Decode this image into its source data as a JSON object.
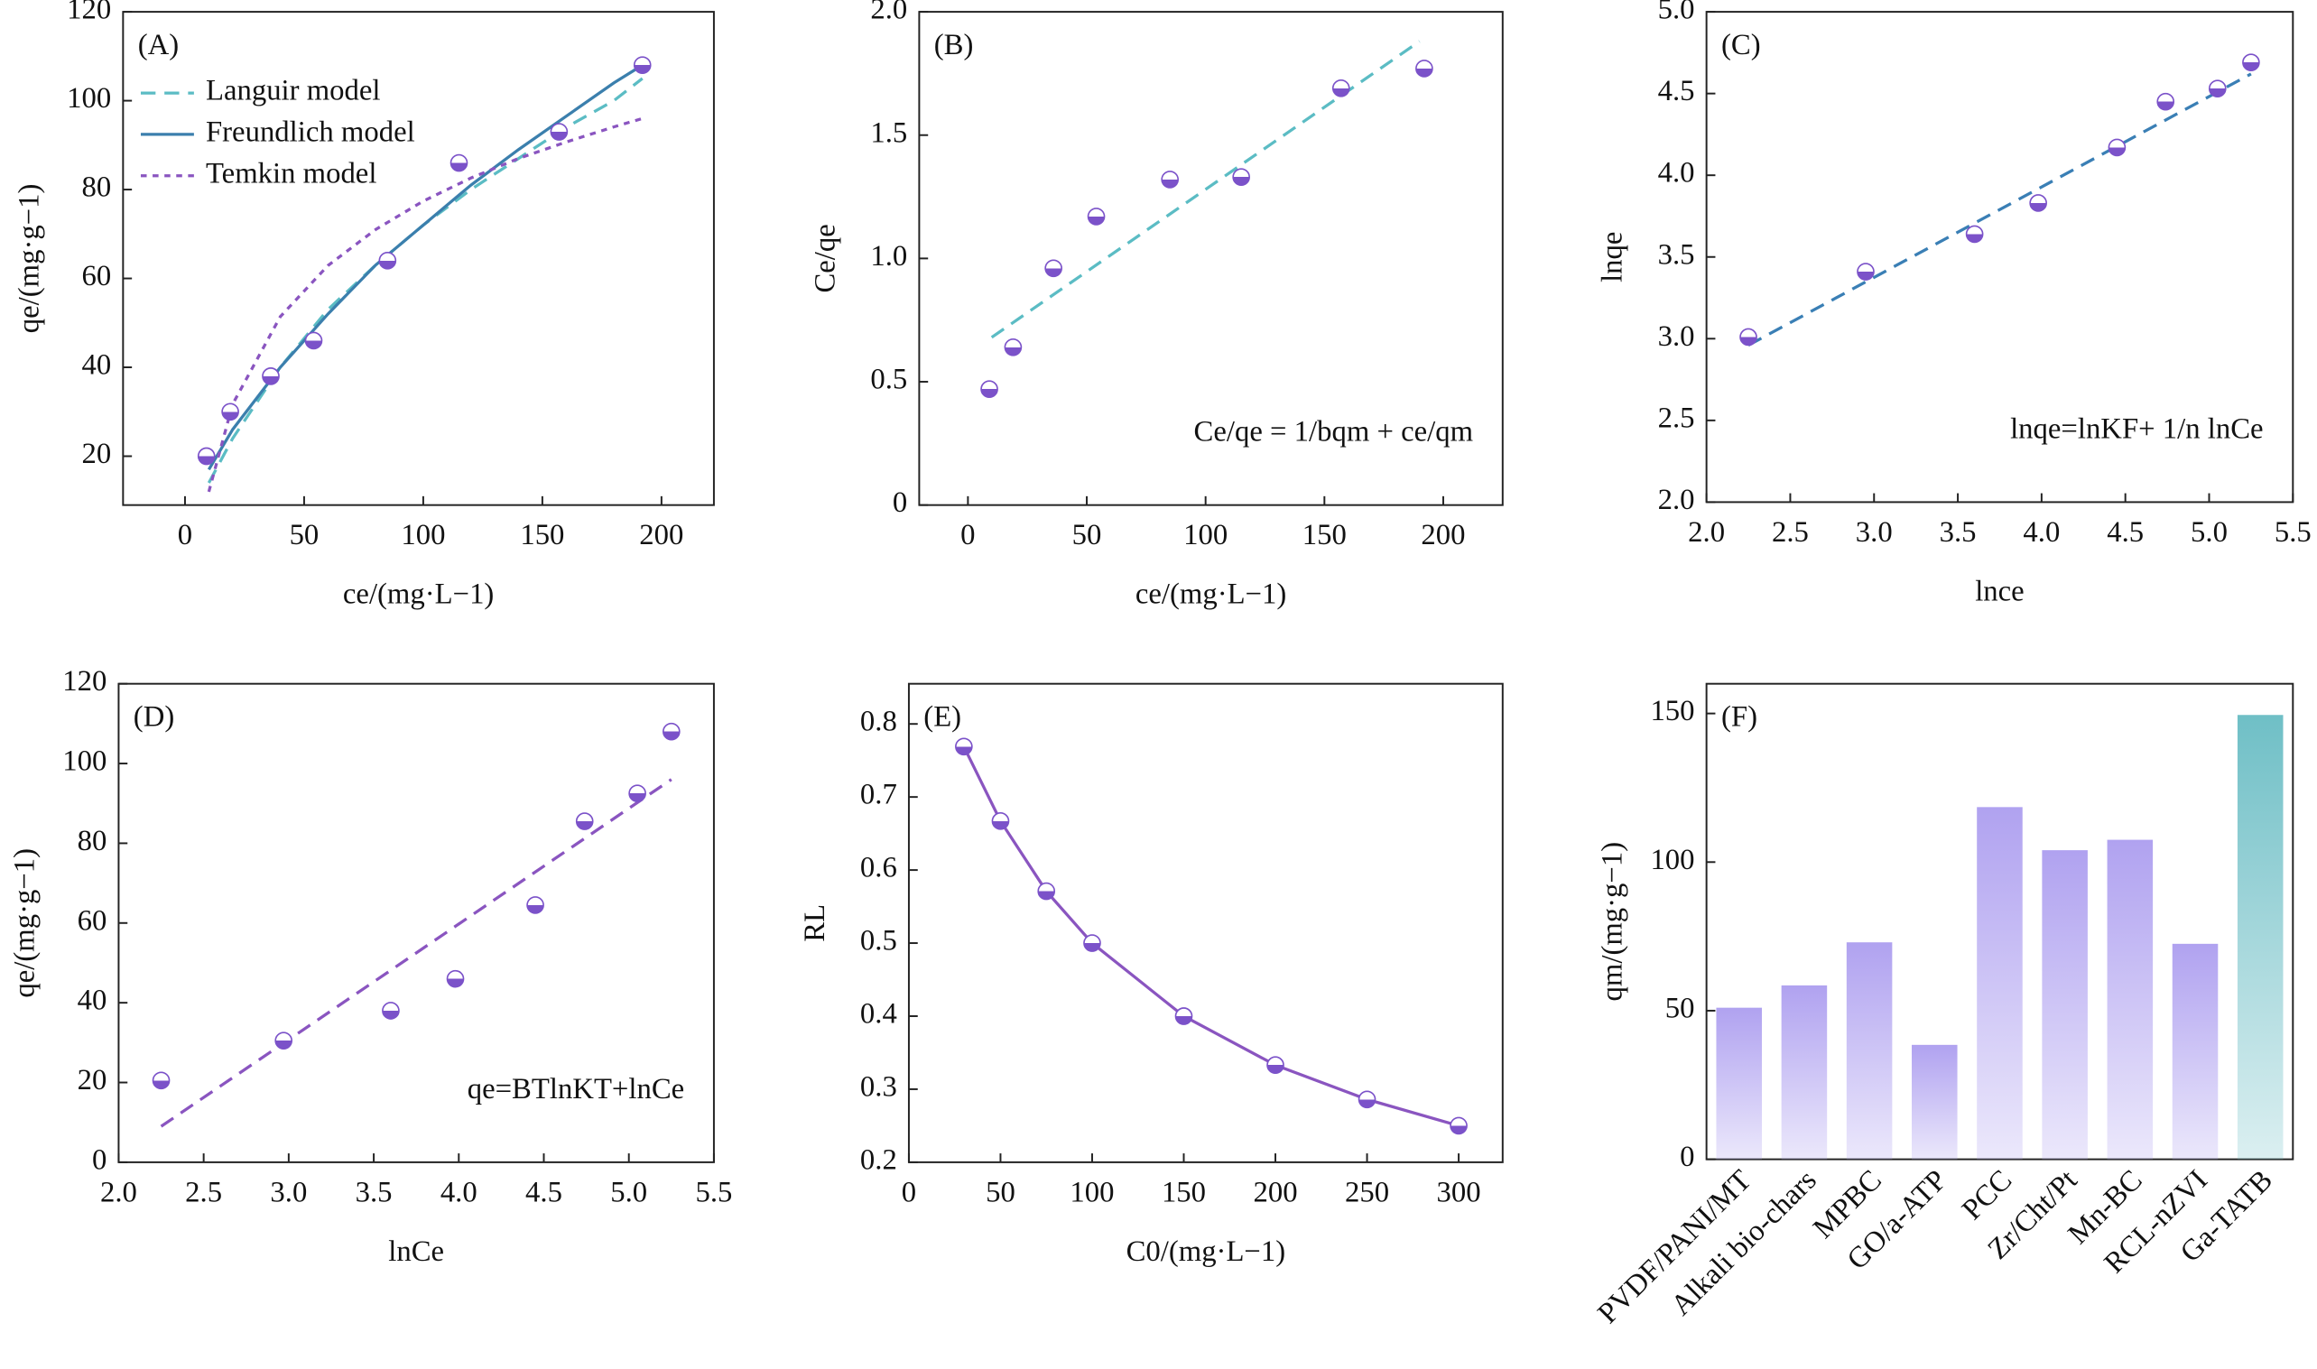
{
  "chart_data": [
    {
      "type": "scatter",
      "label": "(A)",
      "xlabel": "ce/(mg·L−1)",
      "ylabel": "qe/(mg·g−1)",
      "xlim": [
        -26,
        222
      ],
      "ylim": [
        9,
        120
      ],
      "xticks": [
        0,
        50,
        100,
        150,
        200
      ],
      "yticks": [
        20,
        40,
        60,
        80,
        100,
        120
      ],
      "x": [
        9,
        19,
        36,
        54,
        85,
        115,
        157,
        192
      ],
      "values": [
        20,
        30,
        38,
        46,
        64,
        86,
        93,
        108
      ],
      "marker_color": "#7b52c9",
      "series": [
        {
          "name": "Languir model",
          "color": "#5bbcc4",
          "dash": "10,6",
          "x": [
            10,
            20,
            40,
            60,
            80,
            100,
            120,
            140,
            160,
            180,
            192
          ],
          "values": [
            14,
            24,
            40,
            53,
            63,
            72,
            80,
            87,
            94,
            100,
            105
          ]
        },
        {
          "name": "Freundlich model",
          "color": "#3b7fad",
          "dash": "none",
          "x": [
            10,
            20,
            40,
            60,
            80,
            100,
            120,
            140,
            160,
            180,
            192
          ],
          "values": [
            17,
            26,
            40,
            52,
            63,
            72,
            81,
            89,
            96.5,
            104,
            108
          ]
        },
        {
          "name": "Temkin model",
          "color": "#8a55c0",
          "dash": "4,4",
          "x": [
            10,
            20,
            40,
            60,
            80,
            100,
            120,
            140,
            160,
            180,
            192
          ],
          "values": [
            12,
            31.7,
            51.4,
            62.9,
            71,
            77.4,
            82.6,
            87,
            90.7,
            94.1,
            96
          ]
        }
      ]
    },
    {
      "type": "scatter",
      "label": "(B)",
      "xlabel": "ce/(mg·L−1)",
      "ylabel": "Ce/qe",
      "annotation": "Ce/qe = 1/bqm + ce/qm",
      "xlim": [
        -20.5,
        225
      ],
      "ylim": [
        0,
        2
      ],
      "xticks": [
        0,
        50,
        100,
        150,
        200
      ],
      "yticks": [
        0,
        0.5,
        {
          "value": 1,
          "label": "1.0"
        },
        1.5,
        {
          "value": 2,
          "label": "2.0"
        }
      ],
      "x": [
        9,
        19,
        36,
        54,
        85,
        115,
        157,
        192
      ],
      "values": [
        0.47,
        0.64,
        0.96,
        1.17,
        1.32,
        1.33,
        1.69,
        1.77
      ],
      "marker_color": "#7b52c9",
      "series": [
        {
          "color": "#5bbcc4",
          "dash": "10,6",
          "x": [
            10,
            190
          ],
          "values": [
            0.68,
            1.88
          ]
        }
      ]
    },
    {
      "type": "scatter",
      "label": "(C)",
      "xlabel": "lnce",
      "ylabel": "lnqe",
      "annotation": "lnqe=lnKF+ 1/n lnCe",
      "xlim": [
        2,
        5.5
      ],
      "ylim": [
        2,
        5
      ],
      "xticks": [
        {
          "value": 2,
          "label": "2.0"
        },
        2.5,
        {
          "value": 3,
          "label": "3.0"
        },
        3.5,
        {
          "value": 4,
          "label": "4.0"
        },
        4.5,
        {
          "value": 5,
          "label": "5.0"
        },
        5.5
      ],
      "yticks": [
        {
          "value": 2,
          "label": "2.0"
        },
        2.5,
        {
          "value": 3,
          "label": "3.0"
        },
        3.5,
        {
          "value": 4,
          "label": "4.0"
        },
        4.5,
        {
          "value": 5,
          "label": "5.0"
        }
      ],
      "x": [
        2.25,
        2.95,
        3.6,
        3.98,
        4.45,
        4.74,
        5.05,
        5.25
      ],
      "values": [
        3.01,
        3.41,
        3.64,
        3.83,
        4.17,
        4.45,
        4.53,
        4.69
      ],
      "marker_color": "#7b52c9",
      "series": [
        {
          "color": "#3a7fb5",
          "dash": "10,6",
          "x": [
            2.25,
            5.25
          ],
          "values": [
            2.96,
            4.62
          ]
        }
      ]
    },
    {
      "type": "scatter",
      "label": "(D)",
      "xlabel": "lnCe",
      "ylabel": "qe/(mg·g−1)",
      "annotation": "qe=BTlnKT+lnCe",
      "xlim": [
        2,
        5.5
      ],
      "ylim": [
        0,
        120
      ],
      "xticks": [
        {
          "value": 2,
          "label": "2.0"
        },
        2.5,
        {
          "value": 3,
          "label": "3.0"
        },
        3.5,
        {
          "value": 4,
          "label": "4.0"
        },
        4.5,
        {
          "value": 5,
          "label": "5.0"
        },
        5.5
      ],
      "yticks": [
        0,
        20,
        40,
        60,
        80,
        100,
        120
      ],
      "x": [
        2.25,
        2.97,
        3.6,
        3.98,
        4.45,
        4.74,
        5.05,
        5.25
      ],
      "values": [
        20.5,
        30.5,
        38,
        46,
        64.5,
        85.5,
        92.5,
        108
      ],
      "marker_color": "#7b52c9",
      "series": [
        {
          "color": "#8a55c0",
          "dash": "10,6",
          "x": [
            2.25,
            5.25
          ],
          "values": [
            9,
            96
          ]
        }
      ]
    },
    {
      "type": "line",
      "label": "(E)",
      "xlabel": "C0/(mg·L−1)",
      "ylabel": "RL",
      "xlim": [
        0,
        324
      ],
      "ylim": [
        0.2,
        0.855
      ],
      "xticks": [
        0,
        50,
        100,
        150,
        200,
        250,
        300
      ],
      "yticks": [
        0.2,
        0.3,
        0.4,
        0.5,
        0.6,
        0.7,
        0.8
      ],
      "x": [
        30,
        50,
        75,
        100,
        150,
        200,
        250,
        300
      ],
      "values": [
        0.769,
        0.667,
        0.571,
        0.5,
        0.4,
        0.333,
        0.286,
        0.25
      ],
      "marker_color": "#7b52c9",
      "line_color": "#8a55c0"
    },
    {
      "type": "bar",
      "label": "(F)",
      "ylabel": "qm/(mg·g−1)",
      "ylim": [
        0,
        160
      ],
      "yticks": [
        0,
        50,
        100,
        150
      ],
      "categories": [
        "PVDF/PANI/MT",
        "Alkali bio-chars",
        "MPBC",
        "GO/a-ATP",
        "PCC",
        "Zr/Cht/Pt",
        "Mn-BC",
        "RCL-nZVI",
        "Ga-TATB"
      ],
      "values": [
        51,
        58.5,
        73,
        38.5,
        118.5,
        104,
        107.5,
        72.5,
        149.5
      ],
      "colors": [
        "#b0a2f0",
        "#b0a2f0",
        "#b0a2f0",
        "#b0a2f0",
        "#b0a2f0",
        "#b0a2f0",
        "#b0a2f0",
        "#b0a2f0",
        "#6fbfc6"
      ]
    }
  ]
}
